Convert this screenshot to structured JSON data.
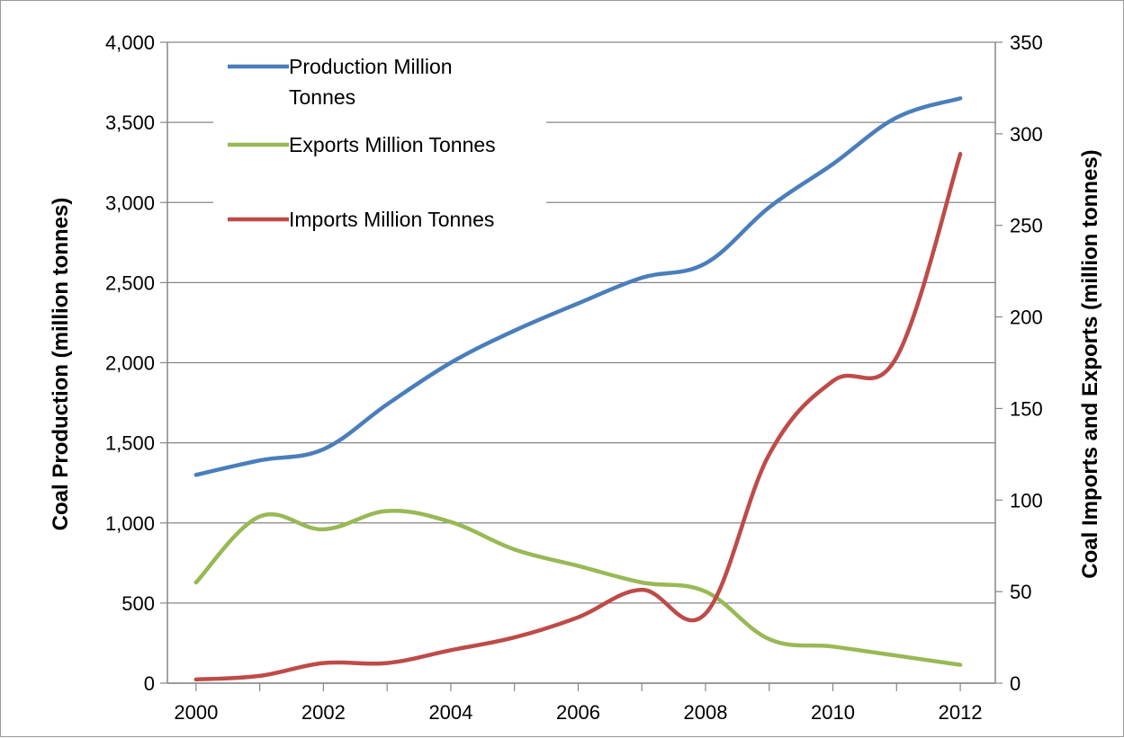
{
  "chart_data": {
    "type": "line",
    "title": "",
    "x": [
      2000,
      2001,
      2002,
      2003,
      2004,
      2005,
      2006,
      2007,
      2008,
      2009,
      2010,
      2011,
      2012
    ],
    "x_ticks": [
      "2000",
      "2002",
      "2004",
      "2006",
      "2008",
      "2010",
      "2012"
    ],
    "xlim": [
      2000,
      2012
    ],
    "ylabel_left": "Coal Production (million tonnes)",
    "ylabel_right": "Coal Imports and Exports (million tonnes)",
    "ylim_left": [
      0,
      4000
    ],
    "ylim_right": [
      0,
      350
    ],
    "y_ticks_left": [
      "0",
      "500",
      "1,000",
      "1,500",
      "2,000",
      "2,500",
      "3,000",
      "3,500",
      "4,000"
    ],
    "y_ticks_right": [
      "0",
      "50",
      "100",
      "150",
      "200",
      "250",
      "300",
      "350"
    ],
    "grid": true,
    "legend_position": "top-left",
    "series": [
      {
        "name": "Production Million Tonnes",
        "axis": "left",
        "color": "#4a7ebb",
        "values": [
          1300,
          1390,
          1460,
          1740,
          2000,
          2200,
          2370,
          2530,
          2620,
          2970,
          3240,
          3530,
          3650
        ]
      },
      {
        "name": "Exports Million Tonnes",
        "axis": "right",
        "color": "#98b954",
        "values": [
          55,
          91,
          84,
          94,
          88,
          73,
          64,
          55,
          50,
          24,
          20,
          15,
          10
        ]
      },
      {
        "name": "Imports Million Tonnes",
        "axis": "right",
        "color": "#be4b48",
        "values": [
          2,
          4,
          11,
          11,
          18,
          25,
          36,
          51,
          38,
          125,
          165,
          178,
          289
        ]
      }
    ]
  }
}
